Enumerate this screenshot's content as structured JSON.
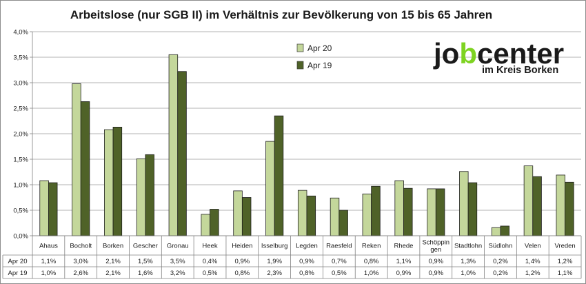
{
  "chart_data": {
    "type": "bar",
    "title": "Arbeitslose (nur SGB II) im Verhältnis zur Bevölkerung von 15 bis 65 Jahren",
    "categories": [
      "Ahaus",
      "Bocholt",
      "Borken",
      "Gescher",
      "Gronau",
      "Heek",
      "Heiden",
      "Isselburg",
      "Legden",
      "Raesfeld",
      "Reken",
      "Rhede",
      "Schöppingen",
      "Stadtlohn",
      "Südlohn",
      "Velen",
      "Vreden"
    ],
    "category_lines": [
      [
        "Ahaus"
      ],
      [
        "Bocholt"
      ],
      [
        "Borken"
      ],
      [
        "Gescher"
      ],
      [
        "Gronau"
      ],
      [
        "Heek"
      ],
      [
        "Heiden"
      ],
      [
        "Isselburg"
      ],
      [
        "Legden"
      ],
      [
        "Raesfeld"
      ],
      [
        "Reken"
      ],
      [
        "Rhede"
      ],
      [
        "Schöppin",
        "gen"
      ],
      [
        "Stadtlohn"
      ],
      [
        "Südlohn"
      ],
      [
        "Velen"
      ],
      [
        "Vreden"
      ]
    ],
    "series": [
      {
        "name": "Apr 20",
        "color": "#c4d79b",
        "values": [
          1.08,
          2.98,
          2.08,
          1.51,
          3.55,
          0.42,
          0.88,
          1.85,
          0.89,
          0.74,
          0.82,
          1.08,
          0.92,
          1.26,
          0.16,
          1.37,
          1.19
        ],
        "labels": [
          "1,1%",
          "3,0%",
          "2,1%",
          "1,5%",
          "3,5%",
          "0,4%",
          "0,9%",
          "1,9%",
          "0,9%",
          "0,7%",
          "0,8%",
          "1,1%",
          "0,9%",
          "1,3%",
          "0,2%",
          "1,4%",
          "1,2%"
        ]
      },
      {
        "name": "Apr 19",
        "color": "#4f6228",
        "values": [
          1.04,
          2.63,
          2.13,
          1.59,
          3.22,
          0.52,
          0.75,
          2.35,
          0.78,
          0.5,
          0.97,
          0.93,
          0.92,
          1.04,
          0.19,
          1.16,
          1.05
        ],
        "labels": [
          "1,0%",
          "2,6%",
          "2,1%",
          "1,6%",
          "3,2%",
          "0,5%",
          "0,8%",
          "2,3%",
          "0,8%",
          "0,5%",
          "1,0%",
          "0,9%",
          "0,9%",
          "1,0%",
          "0,2%",
          "1,2%",
          "1,1%"
        ]
      }
    ],
    "yticks": [
      0,
      0.5,
      1.0,
      1.5,
      2.0,
      2.5,
      3.0,
      3.5,
      4.0
    ],
    "ytick_labels": [
      "0,0%",
      "0,5%",
      "1,0%",
      "1,5%",
      "2,0%",
      "2,5%",
      "3,0%",
      "3,5%",
      "4,0%"
    ],
    "ylim": [
      0,
      4.0
    ],
    "grid": true,
    "legend": "top-center",
    "data_table": true
  },
  "logo": {
    "text_prefix": "jo",
    "text_b": "b",
    "text_suffix": "center",
    "subtitle": "im Kreis Borken",
    "accent_color": "#7ed321"
  }
}
